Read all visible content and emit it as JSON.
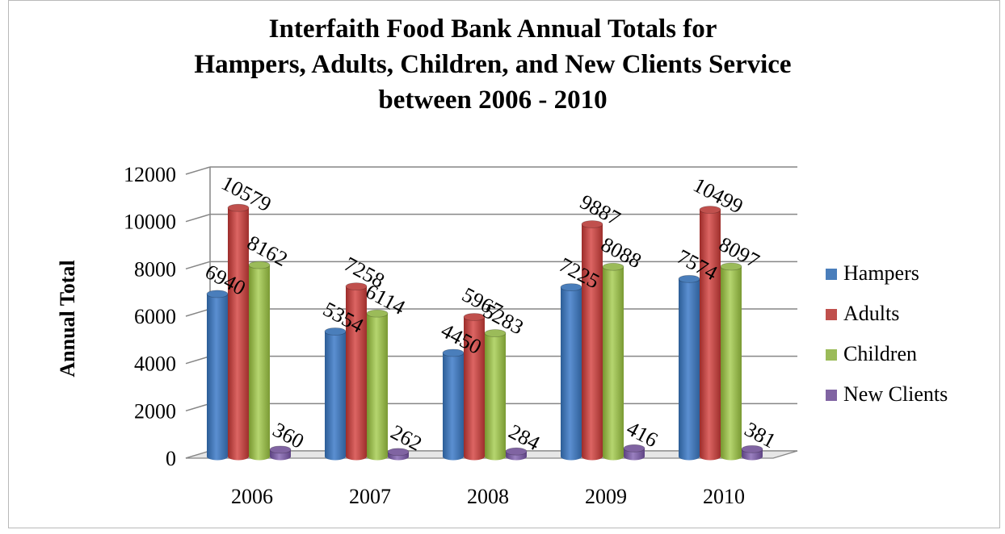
{
  "chart_data": {
    "type": "bar",
    "title_lines": [
      "Interfaith Food Bank Annual Totals for",
      "Hampers, Adults, Children, and New Clients Service",
      "between 2006 - 2010"
    ],
    "xlabel": "",
    "ylabel": "Annual Total",
    "ylim": [
      0,
      12000
    ],
    "yticks": [
      0,
      2000,
      4000,
      6000,
      8000,
      10000,
      12000
    ],
    "grid": true,
    "legend_position": "right",
    "categories": [
      "2006",
      "2007",
      "2008",
      "2009",
      "2010"
    ],
    "series": [
      {
        "name": "Hampers",
        "color": "#4a7ebb",
        "values": [
          6940,
          5354,
          4450,
          7225,
          7574
        ]
      },
      {
        "name": "Adults",
        "color": "#c0504d",
        "values": [
          10579,
          7258,
          5967,
          9887,
          10499
        ]
      },
      {
        "name": "Children",
        "color": "#9bbb59",
        "values": [
          8162,
          6114,
          5283,
          8088,
          8097
        ]
      },
      {
        "name": "New Clients",
        "color": "#8064a2",
        "values": [
          360,
          262,
          284,
          416,
          381
        ]
      }
    ]
  }
}
